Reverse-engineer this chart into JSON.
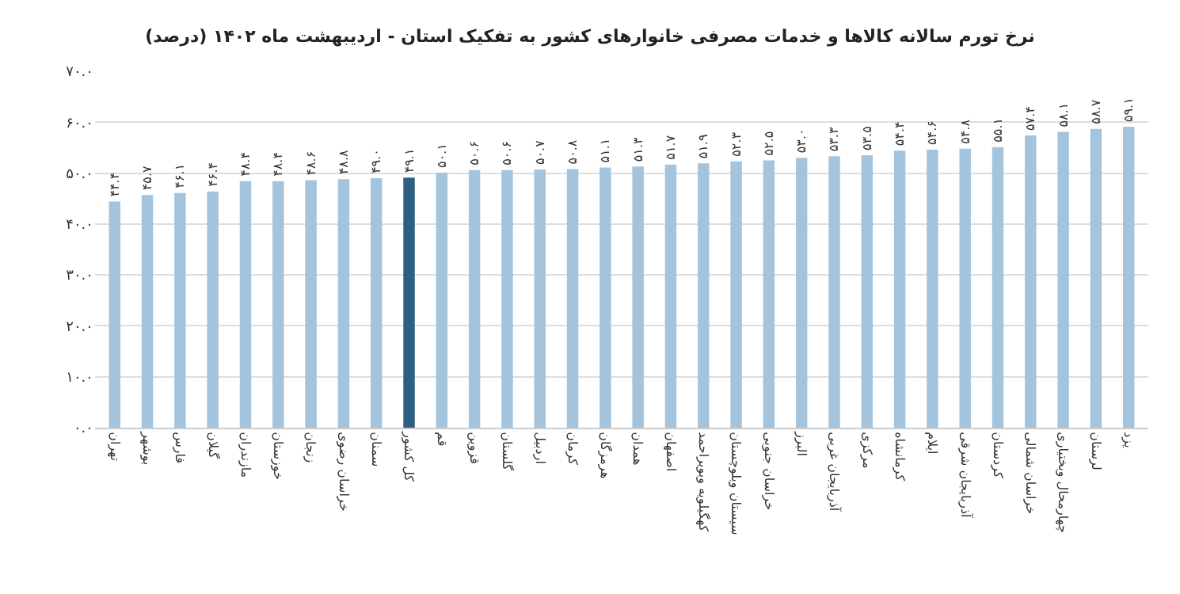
{
  "chart_data": {
    "type": "bar",
    "title": "نرخ تورم سالانه کالاها و خدمات مصرفی خانوارهای کشور به تفکیک استان - اردیبهشت ماه ۱۴۰۲ (درصد)",
    "categories": [
      "تهران",
      "بوشهر",
      "فارس",
      "گیلان",
      "مازندران",
      "خوزستان",
      "زنجان",
      "خراسان رضوی",
      "سمنان",
      "کل کشور",
      "قم",
      "قزوین",
      "گلستان",
      "اردبیل",
      "کرمان",
      "هرمزگان",
      "همدان",
      "اصفهان",
      "کهگیلویه وبویراحمد",
      "سیستان وبلوچستان",
      "خراسان جنوبی",
      "البرز",
      "آذربایجان غربی",
      "مرکزی",
      "کرمانشاه",
      "ایلام",
      "آذربایجان شرقی",
      "کردستان",
      "خراسان شمالی",
      "چهارمحال وبختیاری",
      "لرستان",
      "یزد"
    ],
    "values": [
      44.4,
      45.7,
      46.1,
      46.4,
      48.4,
      48.4,
      48.6,
      48.8,
      49.0,
      49.1,
      50.1,
      50.6,
      50.6,
      50.7,
      50.8,
      51.1,
      51.3,
      51.7,
      51.9,
      52.3,
      52.5,
      53.0,
      53.3,
      53.5,
      54.4,
      54.6,
      54.8,
      55.1,
      57.4,
      58.1,
      58.7,
      59.1
    ],
    "value_labels": [
      "۴۴.۴",
      "۴۵.۷",
      "۴۶.۱",
      "۴۶.۴",
      "۴۸.۴",
      "۴۸.۴",
      "۴۸.۶",
      "۴۸.۸",
      "۴۹.۰",
      "۴۹.۱",
      "۵۰.۱",
      "۵۰.۶",
      "۵۰.۶",
      "۵۰.۷",
      "۵۰.۸",
      "۵۱.۱",
      "۵۱.۳",
      "۵۱.۷",
      "۵۱.۹",
      "۵۲.۳",
      "۵۲.۵",
      "۵۳.۰",
      "۵۳.۳",
      "۵۳.۵",
      "۵۴.۴",
      "۵۴.۶",
      "۵۴.۸",
      "۵۵.۱",
      "۵۷.۴",
      "۵۸.۱",
      "۵۸.۷",
      "۵۹.۱"
    ],
    "colors": [
      "#a3c4dc",
      "#a3c4dc",
      "#a3c4dc",
      "#a3c4dc",
      "#a3c4dc",
      "#a3c4dc",
      "#a3c4dc",
      "#a3c4dc",
      "#a3c4dc",
      "#2d5f80",
      "#a3c4dc",
      "#a3c4dc",
      "#a3c4dc",
      "#a3c4dc",
      "#a3c4dc",
      "#a3c4dc",
      "#a3c4dc",
      "#a3c4dc",
      "#a3c4dc",
      "#a3c4dc",
      "#a3c4dc",
      "#a3c4dc",
      "#a3c4dc",
      "#a3c4dc",
      "#a3c4dc",
      "#a3c4dc",
      "#a3c4dc",
      "#a3c4dc",
      "#a3c4dc",
      "#a3c4dc",
      "#a3c4dc",
      "#a3c4dc"
    ],
    "ylim": [
      0,
      70
    ],
    "yticks": [
      {
        "value": 0,
        "label": "۰.۰"
      },
      {
        "value": 10,
        "label": "۱۰.۰"
      },
      {
        "value": 20,
        "label": "۲۰.۰"
      },
      {
        "value": 30,
        "label": "۳۰.۰"
      },
      {
        "value": 40,
        "label": "۴۰.۰"
      },
      {
        "value": 50,
        "label": "۵۰.۰"
      },
      {
        "value": 60,
        "label": "۶۰.۰"
      },
      {
        "value": 70,
        "label": "۷۰.۰"
      }
    ],
    "grid": "y"
  }
}
